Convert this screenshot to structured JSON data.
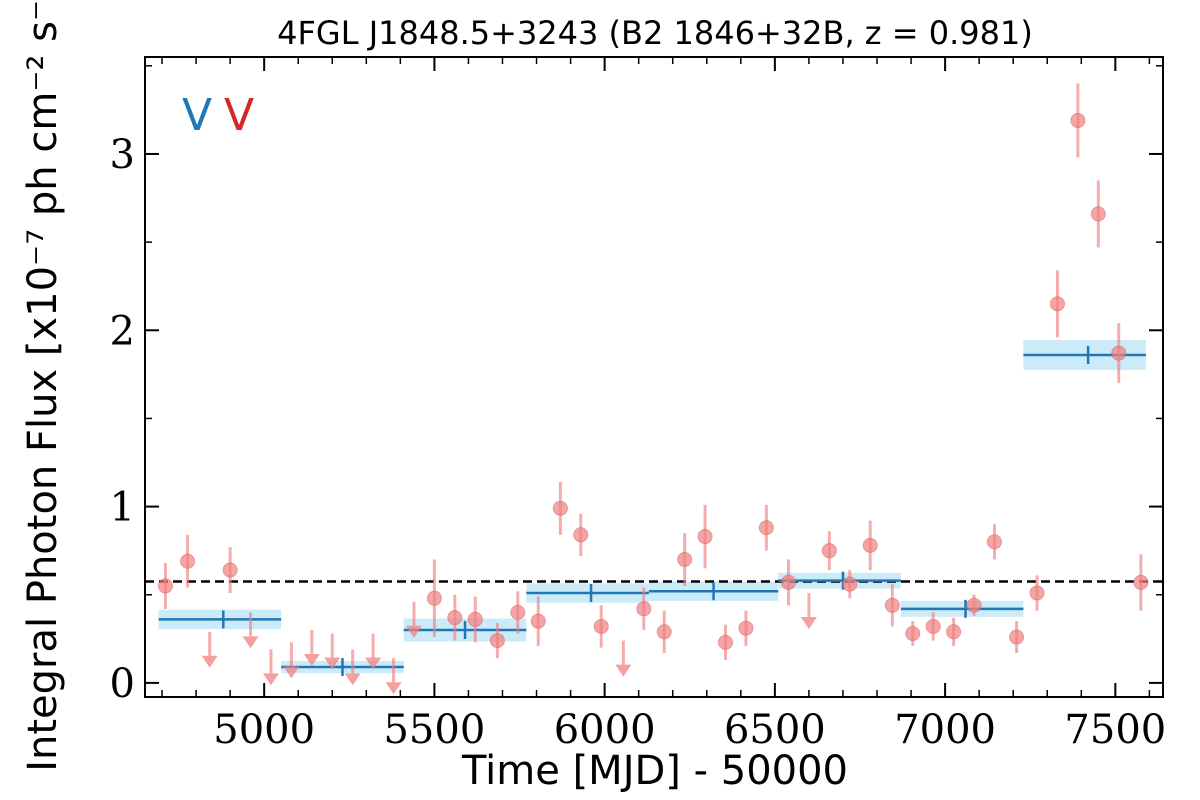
{
  "chart_data": {
    "type": "scatter",
    "title": "4FGL J1848.5+3243 (B2 1846+32B, z = 0.981)",
    "xlabel": "Time [MJD] - 50000",
    "ylabel": "Integral Photon Flux [x10⁻⁷ ph cm⁻² s⁻¹]",
    "xlim": [
      4650,
      7640
    ],
    "ylim": [
      -0.08,
      3.55
    ],
    "x_ticks": [
      5000,
      5500,
      6000,
      6500,
      7000,
      7500
    ],
    "x_tick_labels": [
      "5000",
      "5500",
      "6000",
      "6500",
      "7000",
      "7500"
    ],
    "y_ticks": [
      0,
      1,
      2,
      3
    ],
    "y_tick_labels": [
      "0",
      "1",
      "2",
      "3"
    ],
    "average_flux": 0.575,
    "annotations": [
      {
        "text": "V",
        "color": "#1f77b4"
      },
      {
        "text": "V",
        "color": "#d62728"
      }
    ],
    "colors": {
      "points": "#f08080",
      "bins": "#1f77b4",
      "bin_band": "#a8def5",
      "average": "#000000"
    },
    "series": [
      {
        "kind": "points",
        "points": [
          {
            "x": 4710,
            "y": 0.55,
            "err": 0.13
          },
          {
            "x": 4775,
            "y": 0.69,
            "err": 0.15
          },
          {
            "x": 4900,
            "y": 0.64,
            "err": 0.13
          },
          {
            "x": 5500,
            "y": 0.48,
            "err": 0.22
          },
          {
            "x": 5560,
            "y": 0.37,
            "err": 0.13
          },
          {
            "x": 5620,
            "y": 0.36,
            "err": 0.13
          },
          {
            "x": 5685,
            "y": 0.24,
            "err": 0.1
          },
          {
            "x": 5745,
            "y": 0.4,
            "err": 0.12
          },
          {
            "x": 5805,
            "y": 0.35,
            "err": 0.14
          },
          {
            "x": 5870,
            "y": 0.99,
            "err": 0.15
          },
          {
            "x": 5930,
            "y": 0.84,
            "err": 0.12
          },
          {
            "x": 5990,
            "y": 0.32,
            "err": 0.12
          },
          {
            "x": 6115,
            "y": 0.42,
            "err": 0.12
          },
          {
            "x": 6175,
            "y": 0.29,
            "err": 0.12
          },
          {
            "x": 6235,
            "y": 0.7,
            "err": 0.15
          },
          {
            "x": 6295,
            "y": 0.83,
            "err": 0.18
          },
          {
            "x": 6355,
            "y": 0.23,
            "err": 0.1
          },
          {
            "x": 6415,
            "y": 0.31,
            "err": 0.1
          },
          {
            "x": 6475,
            "y": 0.88,
            "err": 0.13
          },
          {
            "x": 6540,
            "y": 0.57,
            "err": 0.13
          },
          {
            "x": 6660,
            "y": 0.75,
            "err": 0.11
          },
          {
            "x": 6720,
            "y": 0.56,
            "err": 0.08
          },
          {
            "x": 6780,
            "y": 0.78,
            "err": 0.14
          },
          {
            "x": 6845,
            "y": 0.44,
            "err": 0.12
          },
          {
            "x": 6905,
            "y": 0.28,
            "err": 0.07
          },
          {
            "x": 6965,
            "y": 0.32,
            "err": 0.08
          },
          {
            "x": 7025,
            "y": 0.29,
            "err": 0.08
          },
          {
            "x": 7085,
            "y": 0.44,
            "err": 0.06
          },
          {
            "x": 7145,
            "y": 0.8,
            "err": 0.1
          },
          {
            "x": 7210,
            "y": 0.26,
            "err": 0.09
          },
          {
            "x": 7270,
            "y": 0.51,
            "err": 0.1
          },
          {
            "x": 7330,
            "y": 2.15,
            "err": 0.19
          },
          {
            "x": 7390,
            "y": 3.19,
            "err": 0.21
          },
          {
            "x": 7450,
            "y": 2.66,
            "err": 0.19
          },
          {
            "x": 7510,
            "y": 1.87,
            "err": 0.17
          },
          {
            "x": 7575,
            "y": 0.57,
            "err": 0.16
          }
        ]
      },
      {
        "kind": "upper_limits",
        "points": [
          {
            "x": 4840,
            "y": 0.29
          },
          {
            "x": 4960,
            "y": 0.4
          },
          {
            "x": 5020,
            "y": 0.19
          },
          {
            "x": 5080,
            "y": 0.23
          },
          {
            "x": 5140,
            "y": 0.3
          },
          {
            "x": 5200,
            "y": 0.28
          },
          {
            "x": 5260,
            "y": 0.19
          },
          {
            "x": 5320,
            "y": 0.28
          },
          {
            "x": 5380,
            "y": 0.14
          },
          {
            "x": 5440,
            "y": 0.46
          },
          {
            "x": 6055,
            "y": 0.24
          },
          {
            "x": 6600,
            "y": 0.51
          }
        ]
      },
      {
        "kind": "bins",
        "bins": [
          {
            "x0": 4690,
            "x1": 5050,
            "xc": 4880,
            "y": 0.36,
            "err": 0.055
          },
          {
            "x0": 5050,
            "x1": 5410,
            "xc": 5230,
            "y": 0.09,
            "err": 0.035
          },
          {
            "x0": 5410,
            "x1": 5770,
            "xc": 5590,
            "y": 0.3,
            "err": 0.065
          },
          {
            "x0": 5770,
            "x1": 6130,
            "xc": 5960,
            "y": 0.51,
            "err": 0.055
          },
          {
            "x0": 6130,
            "x1": 6510,
            "xc": 6320,
            "y": 0.52,
            "err": 0.055
          },
          {
            "x0": 6510,
            "x1": 6870,
            "xc": 6700,
            "y": 0.58,
            "err": 0.045
          },
          {
            "x0": 6870,
            "x1": 7230,
            "xc": 7060,
            "y": 0.42,
            "err": 0.045
          },
          {
            "x0": 7230,
            "x1": 7590,
            "xc": 7420,
            "y": 1.86,
            "err": 0.085
          }
        ]
      }
    ]
  }
}
